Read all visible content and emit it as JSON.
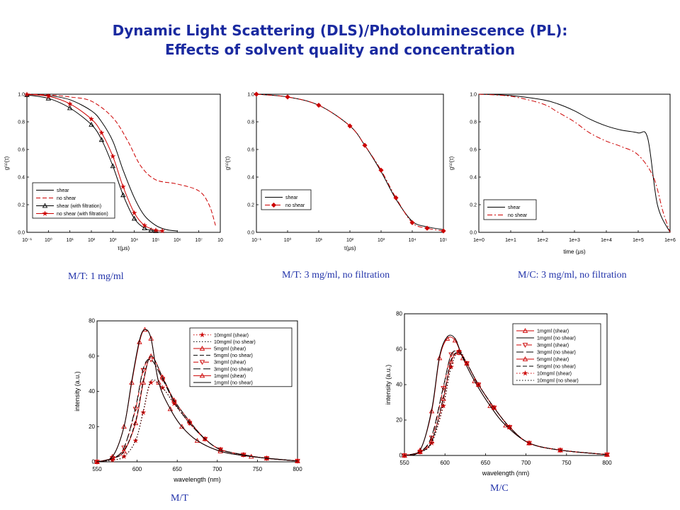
{
  "page": {
    "title_line1": "Dynamic Light Scattering (DLS)/Photoluminescence (PL):",
    "title_line2": "Effects of solvent quality and concentration",
    "captions": [
      "M/T: 1 mg/ml",
      "M/T: 3 mg/ml, no filtration",
      "M/C: 3 mg/ml, no filtration",
      "M/T",
      "M/C"
    ]
  },
  "chart_data": [
    {
      "type": "line",
      "xlabel": "τ(μs)",
      "ylabel": "g⁽¹⁾(τ)",
      "xscale": "log",
      "xlim": [
        0.1,
        100000000
      ],
      "ylim": [
        0,
        1
      ],
      "yticks": [
        "0.0",
        "0.2",
        "0.4",
        "0.6",
        "0.8",
        "1.0"
      ],
      "xticks": [
        "10⁻¹",
        "10⁰",
        "10¹",
        "10²",
        "10³",
        "10⁴",
        "10⁵",
        "10⁶",
        "10⁷",
        "10"
      ],
      "legend_position": "bottom-left",
      "series": [
        {
          "name": "shear",
          "color": "#000000",
          "dash": "solid",
          "marker": "none",
          "x": [
            0.1,
            1,
            10,
            100,
            300,
            1000,
            3000,
            10000,
            30000,
            100000,
            300000,
            1000000
          ],
          "y": [
            0.999,
            0.99,
            0.96,
            0.88,
            0.8,
            0.66,
            0.45,
            0.25,
            0.12,
            0.05,
            0.02,
            0.01
          ]
        },
        {
          "name": "no shear",
          "color": "#cc0000",
          "dash": "dash",
          "marker": "none",
          "x": [
            0.1,
            1,
            10,
            100,
            1000,
            5000,
            20000,
            100000,
            1000000,
            10000000,
            30000000,
            60000000
          ],
          "y": [
            1.0,
            0.995,
            0.98,
            0.95,
            0.83,
            0.66,
            0.48,
            0.38,
            0.35,
            0.3,
            0.2,
            0.05
          ]
        },
        {
          "name": "shear (with filtration)",
          "color": "#000000",
          "dash": "solid",
          "marker": "triangle",
          "x": [
            0.1,
            1,
            10,
            100,
            300,
            1000,
            3000,
            10000,
            30000,
            60000,
            100000
          ],
          "y": [
            0.995,
            0.97,
            0.9,
            0.78,
            0.67,
            0.48,
            0.27,
            0.1,
            0.03,
            0.015,
            0.01
          ]
        },
        {
          "name": "no shear (with filtration)",
          "color": "#cc0000",
          "dash": "solid",
          "marker": "star",
          "x": [
            0.1,
            1,
            10,
            100,
            300,
            1000,
            3000,
            10000,
            30000,
            100000,
            200000
          ],
          "y": [
            0.998,
            0.985,
            0.93,
            0.82,
            0.72,
            0.55,
            0.33,
            0.14,
            0.05,
            0.015,
            0.01
          ]
        }
      ]
    },
    {
      "type": "line",
      "xlabel": "τ(μs)",
      "ylabel": "g⁽¹⁾(τ)",
      "xscale": "log",
      "xlim": [
        0.1,
        100000
      ],
      "ylim": [
        0,
        1
      ],
      "yticks": [
        "0.0",
        "0.2",
        "0.4",
        "0.6",
        "0.8",
        "1.0"
      ],
      "xticks": [
        "10⁻¹",
        "10⁰",
        "10¹",
        "10²",
        "10³",
        "10⁴",
        "10⁵"
      ],
      "legend_position": "bottom-left",
      "series": [
        {
          "name": "shear",
          "color": "#000000",
          "dash": "solid",
          "marker": "none",
          "x": [
            0.1,
            1,
            10,
            100,
            300,
            1000,
            3000,
            10000,
            30000,
            100000
          ],
          "y": [
            1.0,
            0.98,
            0.92,
            0.77,
            0.63,
            0.44,
            0.24,
            0.08,
            0.04,
            0.02
          ]
        },
        {
          "name": "no shear",
          "color": "#cc0000",
          "dash": "dashdot",
          "marker": "diamond",
          "x": [
            0.1,
            1,
            10,
            100,
            300,
            1000,
            3000,
            10000,
            30000,
            100000
          ],
          "y": [
            1.0,
            0.98,
            0.92,
            0.77,
            0.63,
            0.45,
            0.25,
            0.07,
            0.03,
            0.01
          ]
        }
      ]
    },
    {
      "type": "line",
      "xlabel": "time (μs)",
      "ylabel": "g⁽¹⁾(τ)",
      "xscale": "log",
      "xlim": [
        1,
        1000000
      ],
      "ylim": [
        0,
        1
      ],
      "yticks": [
        "0.0",
        "0.2",
        "0.4",
        "0.6",
        "0.8",
        "1.0"
      ],
      "xticks": [
        "1e+0",
        "1e+1",
        "1e+2",
        "1e+3",
        "1e+4",
        "1e+5",
        "1e+6"
      ],
      "legend_position": "bottom-left",
      "series": [
        {
          "name": "shear",
          "color": "#000000",
          "dash": "solid",
          "marker": "none",
          "x": [
            1,
            10,
            100,
            300,
            1000,
            3000,
            10000,
            30000,
            100000,
            200000,
            400000,
            1000000
          ],
          "y": [
            1.0,
            0.99,
            0.96,
            0.93,
            0.88,
            0.82,
            0.77,
            0.74,
            0.72,
            0.68,
            0.2,
            0.0
          ]
        },
        {
          "name": "no shear",
          "color": "#cc0000",
          "dash": "dashdot",
          "marker": "none",
          "x": [
            1,
            10,
            100,
            300,
            1000,
            3000,
            10000,
            30000,
            100000,
            300000,
            600000,
            1000000
          ],
          "y": [
            1.0,
            0.985,
            0.93,
            0.87,
            0.8,
            0.72,
            0.66,
            0.62,
            0.56,
            0.4,
            0.15,
            0.0
          ]
        }
      ]
    },
    {
      "type": "line",
      "xlabel": "wavelength (nm)",
      "ylabel": "intensity (a.u.)",
      "xlim": [
        540,
        800
      ],
      "ylim": [
        0,
        80
      ],
      "xticks": [
        "550",
        "600",
        "650",
        "700",
        "750",
        "800"
      ],
      "yticks": [
        "0",
        "20",
        "40",
        "60",
        "80"
      ],
      "legend_position": "top-right",
      "series": [
        {
          "name": "10mgml (shear)",
          "color": "#cc0000",
          "dash": "dot",
          "marker": "star",
          "x": [
            540,
            560,
            575,
            590,
            600,
            610,
            625,
            640,
            660,
            680,
            700,
            730,
            760,
            800
          ],
          "y": [
            0,
            1,
            3,
            12,
            28,
            45,
            42,
            33,
            22,
            13,
            7,
            4,
            2,
            0.5
          ]
        },
        {
          "name": "10mgml (no shear)",
          "color": "#000000",
          "dash": "dot",
          "marker": "none",
          "x": [
            540,
            560,
            575,
            590,
            600,
            610,
            625,
            640,
            660,
            680,
            700,
            730,
            760,
            800
          ],
          "y": [
            0,
            1,
            3,
            12,
            29,
            46,
            42,
            33,
            22,
            13,
            7,
            4,
            2,
            0.5
          ]
        },
        {
          "name": "5mgml (shear)",
          "color": "#cc0000",
          "dash": "solid",
          "marker": "triangle",
          "x": [
            540,
            560,
            575,
            590,
            600,
            610,
            625,
            640,
            660,
            680,
            700,
            730,
            760,
            800
          ],
          "y": [
            0,
            2,
            6,
            22,
            45,
            60,
            48,
            35,
            23,
            13,
            7,
            4,
            2,
            0.5
          ]
        },
        {
          "name": "5mgml (no shear)",
          "color": "#000000",
          "dash": "dash",
          "marker": "none",
          "x": [
            540,
            560,
            575,
            590,
            600,
            610,
            625,
            640,
            660,
            680,
            700,
            730,
            760,
            800
          ],
          "y": [
            0,
            2,
            6,
            23,
            46,
            60,
            48,
            35,
            23,
            13,
            7,
            4,
            2,
            0.5
          ]
        },
        {
          "name": "3mgml (shear)",
          "color": "#cc0000",
          "dash": "dashdot",
          "marker": "triangle-down",
          "x": [
            540,
            560,
            575,
            590,
            600,
            610,
            625,
            640,
            660,
            680,
            700,
            730,
            760,
            800
          ],
          "y": [
            0,
            2,
            8,
            30,
            52,
            58,
            47,
            34,
            22,
            13,
            7,
            4,
            2,
            0.5
          ]
        },
        {
          "name": "3mgml (no shear)",
          "color": "#000000",
          "dash": "longdash",
          "marker": "none",
          "x": [
            540,
            560,
            575,
            590,
            600,
            610,
            625,
            640,
            660,
            680,
            700,
            730,
            760,
            800
          ],
          "y": [
            0,
            2,
            8,
            31,
            53,
            58,
            47,
            34,
            22,
            13,
            7,
            4,
            2,
            0.5
          ]
        },
        {
          "name": "1mgml (shear)",
          "color": "#cc0000",
          "dash": "solid",
          "marker": "triangle",
          "x": [
            540,
            560,
            575,
            585,
            595,
            602,
            610,
            620,
            635,
            650,
            670,
            700,
            740,
            800
          ],
          "y": [
            0,
            3,
            20,
            45,
            68,
            75,
            70,
            45,
            30,
            20,
            12,
            6,
            3,
            0.5
          ]
        },
        {
          "name": "1mgml (no shear)",
          "color": "#000000",
          "dash": "solid",
          "marker": "none",
          "x": [
            540,
            560,
            575,
            585,
            595,
            602,
            610,
            620,
            635,
            650,
            670,
            700,
            740,
            800
          ],
          "y": [
            0,
            3,
            20,
            46,
            69,
            75,
            70,
            45,
            30,
            20,
            12,
            6,
            3,
            0.5
          ]
        }
      ]
    },
    {
      "type": "line",
      "xlabel": "wavelength (nm)",
      "ylabel": "intensity (a.u.)",
      "xlim": [
        540,
        800
      ],
      "ylim": [
        0,
        80
      ],
      "xticks": [
        "550",
        "600",
        "650",
        "700",
        "750",
        "800"
      ],
      "yticks": [
        "0",
        "20",
        "40",
        "60",
        "80"
      ],
      "legend_position": "top-right",
      "series": [
        {
          "name": "1mgml (shear)",
          "color": "#cc0000",
          "dash": "solid",
          "marker": "triangle",
          "x": [
            540,
            560,
            575,
            585,
            595,
            605,
            615,
            630,
            650,
            670,
            700,
            740,
            800
          ],
          "y": [
            0,
            3,
            25,
            55,
            66,
            65,
            55,
            42,
            28,
            17,
            7,
            3,
            0.5
          ]
        },
        {
          "name": "1mgml (no shear)",
          "color": "#000000",
          "dash": "solid",
          "marker": "none",
          "x": [
            540,
            560,
            575,
            585,
            595,
            605,
            615,
            630,
            650,
            670,
            700,
            740,
            800
          ],
          "y": [
            0,
            3,
            26,
            56,
            67,
            66,
            55,
            42,
            28,
            17,
            7,
            3,
            0.5
          ]
        },
        {
          "name": "3mgml (shear)",
          "color": "#cc0000",
          "dash": "dashdot",
          "marker": "triangle-down",
          "x": [
            540,
            560,
            575,
            590,
            600,
            610,
            620,
            635,
            655,
            675,
            700,
            740,
            800
          ],
          "y": [
            0,
            2,
            10,
            38,
            57,
            58,
            52,
            40,
            27,
            16,
            7,
            3,
            0.5
          ]
        },
        {
          "name": "3mgml (no shear)",
          "color": "#000000",
          "dash": "longdash",
          "marker": "none",
          "x": [
            540,
            560,
            575,
            590,
            600,
            610,
            620,
            635,
            655,
            675,
            700,
            740,
            800
          ],
          "y": [
            0,
            2,
            11,
            39,
            57,
            58,
            52,
            40,
            27,
            16,
            7,
            3,
            0.5
          ]
        },
        {
          "name": "5mgml (shear)",
          "color": "#cc0000",
          "dash": "solid",
          "marker": "triangle",
          "x": [
            540,
            560,
            575,
            590,
            600,
            610,
            620,
            635,
            655,
            675,
            700,
            740,
            800
          ],
          "y": [
            0,
            2,
            8,
            32,
            53,
            58,
            52,
            40,
            27,
            16,
            7,
            3,
            0.5
          ]
        },
        {
          "name": "5mgml (no shear)",
          "color": "#000000",
          "dash": "dash",
          "marker": "none",
          "x": [
            540,
            560,
            575,
            590,
            600,
            610,
            620,
            635,
            655,
            675,
            700,
            740,
            800
          ],
          "y": [
            0,
            2,
            8,
            33,
            54,
            58,
            52,
            40,
            27,
            16,
            7,
            3,
            0.5
          ]
        },
        {
          "name": "10mgml (shear)",
          "color": "#cc0000",
          "dash": "dot",
          "marker": "star",
          "x": [
            540,
            560,
            575,
            590,
            600,
            610,
            620,
            635,
            655,
            675,
            700,
            740,
            800
          ],
          "y": [
            0,
            2,
            7,
            28,
            50,
            59,
            52,
            40,
            27,
            16,
            7,
            3,
            0.5
          ]
        },
        {
          "name": "10mgml (no shear)",
          "color": "#000000",
          "dash": "dot",
          "marker": "none",
          "x": [
            540,
            560,
            575,
            590,
            600,
            610,
            620,
            635,
            655,
            675,
            700,
            740,
            800
          ],
          "y": [
            0,
            2,
            7,
            29,
            50,
            59,
            52,
            40,
            27,
            16,
            7,
            3,
            0.5
          ]
        }
      ]
    }
  ]
}
